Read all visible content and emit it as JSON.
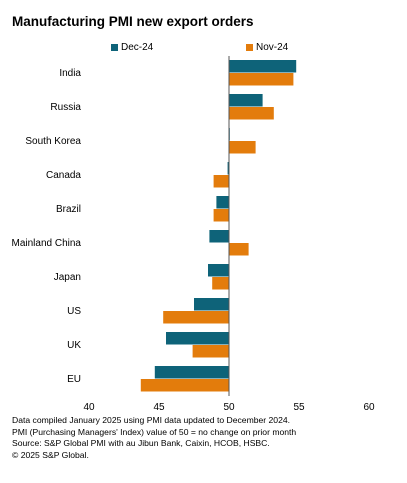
{
  "title": "Manufacturing PMI new export orders",
  "legend": [
    {
      "name": "Dec-24",
      "color": "#0e6379"
    },
    {
      "name": "Nov-24",
      "color": "#e37c0c"
    }
  ],
  "footnotes": [
    "Data compiled January 2025 using PMI data updated to December 2024.",
    "PMI (Purchasing Managers' Index) value of 50 = no change on prior month",
    "Source: S&P Global PMI with au Jibun Bank, Caixin, HCOB, HSBC.",
    "© 2025 S&P Global."
  ],
  "chart_data": {
    "type": "bar",
    "orientation": "horizontal",
    "title": "Manufacturing PMI new export orders",
    "categories": [
      "India",
      "Russia",
      "South Korea",
      "Canada",
      "Brazil",
      "Mainland China",
      "Japan",
      "US",
      "UK",
      "EU"
    ],
    "series": [
      {
        "name": "Dec-24",
        "color": "#0e6379",
        "values": [
          54.8,
          52.4,
          50.0,
          49.9,
          49.1,
          48.6,
          48.5,
          47.5,
          45.5,
          44.7
        ]
      },
      {
        "name": "Nov-24",
        "color": "#e37c0c",
        "values": [
          54.6,
          53.2,
          51.9,
          48.9,
          48.9,
          51.4,
          48.8,
          45.3,
          47.4,
          43.7
        ]
      }
    ],
    "baseline": 50,
    "xlim": [
      40,
      60
    ],
    "xticks": [
      "40",
      "45",
      "50",
      "55",
      "60"
    ],
    "xlabel": "",
    "ylabel": "",
    "grid": false,
    "legend_position": "top"
  }
}
